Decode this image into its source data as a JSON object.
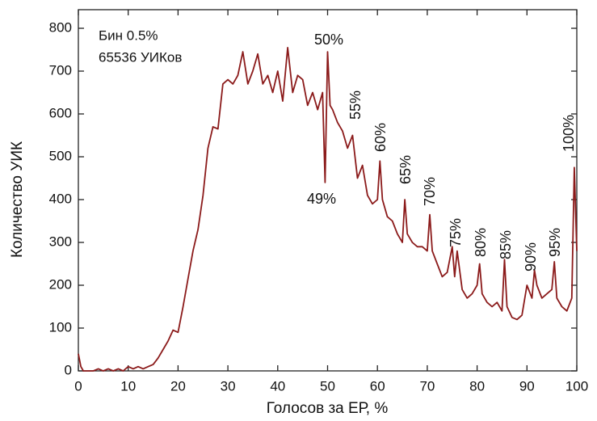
{
  "chart_data": {
    "type": "line",
    "x_label": "Голосов за ЕР, %",
    "y_label": "Количество УИК",
    "notes": [
      "Бин 0.5%",
      "65536 УИКов"
    ],
    "annotations": [
      "50%",
      "49%",
      "55%",
      "60%",
      "65%",
      "70%",
      "75%",
      "80%",
      "85%",
      "90%",
      "95%",
      "100%"
    ],
    "color": "#8b1a1a",
    "x": [
      0,
      0.5,
      1,
      2,
      3,
      4,
      5,
      6,
      7,
      8,
      9,
      10,
      11,
      12,
      13,
      14,
      15,
      16,
      17,
      18,
      19,
      20,
      21,
      22,
      23,
      24,
      25,
      26,
      27,
      28,
      29,
      30,
      31,
      32,
      33,
      34,
      35,
      36,
      37,
      38,
      39,
      40,
      41,
      42,
      43,
      44,
      45,
      46,
      47,
      48,
      49,
      49.5,
      50,
      50.5,
      51,
      52,
      53,
      54,
      55,
      56,
      57,
      58,
      59,
      60,
      60.5,
      61,
      62,
      63,
      64,
      65,
      65.5,
      66,
      67,
      68,
      69,
      70,
      70.5,
      71,
      72,
      73,
      74,
      75,
      75.5,
      76,
      77,
      78,
      79,
      80,
      80.5,
      81,
      82,
      83,
      84,
      85,
      85.5,
      86,
      87,
      88,
      89,
      90,
      91,
      91.5,
      92,
      93,
      94,
      95,
      95.5,
      96,
      97,
      98,
      99,
      99.5,
      100
    ],
    "values": [
      40,
      10,
      0,
      0,
      0,
      5,
      0,
      5,
      0,
      5,
      0,
      10,
      5,
      10,
      5,
      10,
      15,
      30,
      50,
      70,
      95,
      90,
      150,
      215,
      280,
      330,
      410,
      520,
      570,
      565,
      670,
      680,
      670,
      690,
      745,
      670,
      700,
      740,
      670,
      690,
      650,
      700,
      630,
      755,
      650,
      690,
      680,
      620,
      650,
      610,
      650,
      440,
      745,
      620,
      610,
      580,
      560,
      520,
      550,
      450,
      480,
      410,
      390,
      400,
      490,
      400,
      360,
      350,
      320,
      300,
      400,
      320,
      300,
      290,
      290,
      280,
      365,
      280,
      250,
      220,
      230,
      290,
      220,
      280,
      190,
      170,
      180,
      200,
      250,
      180,
      160,
      150,
      160,
      140,
      260,
      150,
      125,
      120,
      130,
      200,
      170,
      235,
      200,
      170,
      180,
      190,
      255,
      170,
      150,
      140,
      170,
      475,
      280
    ],
    "xlim": [
      0,
      100
    ],
    "xticks": [
      0,
      10,
      20,
      30,
      40,
      50,
      60,
      70,
      80,
      90,
      100
    ],
    "ylim": [
      0,
      800
    ],
    "yticks": [
      0,
      100,
      200,
      300,
      400,
      500,
      600,
      700,
      800
    ]
  }
}
